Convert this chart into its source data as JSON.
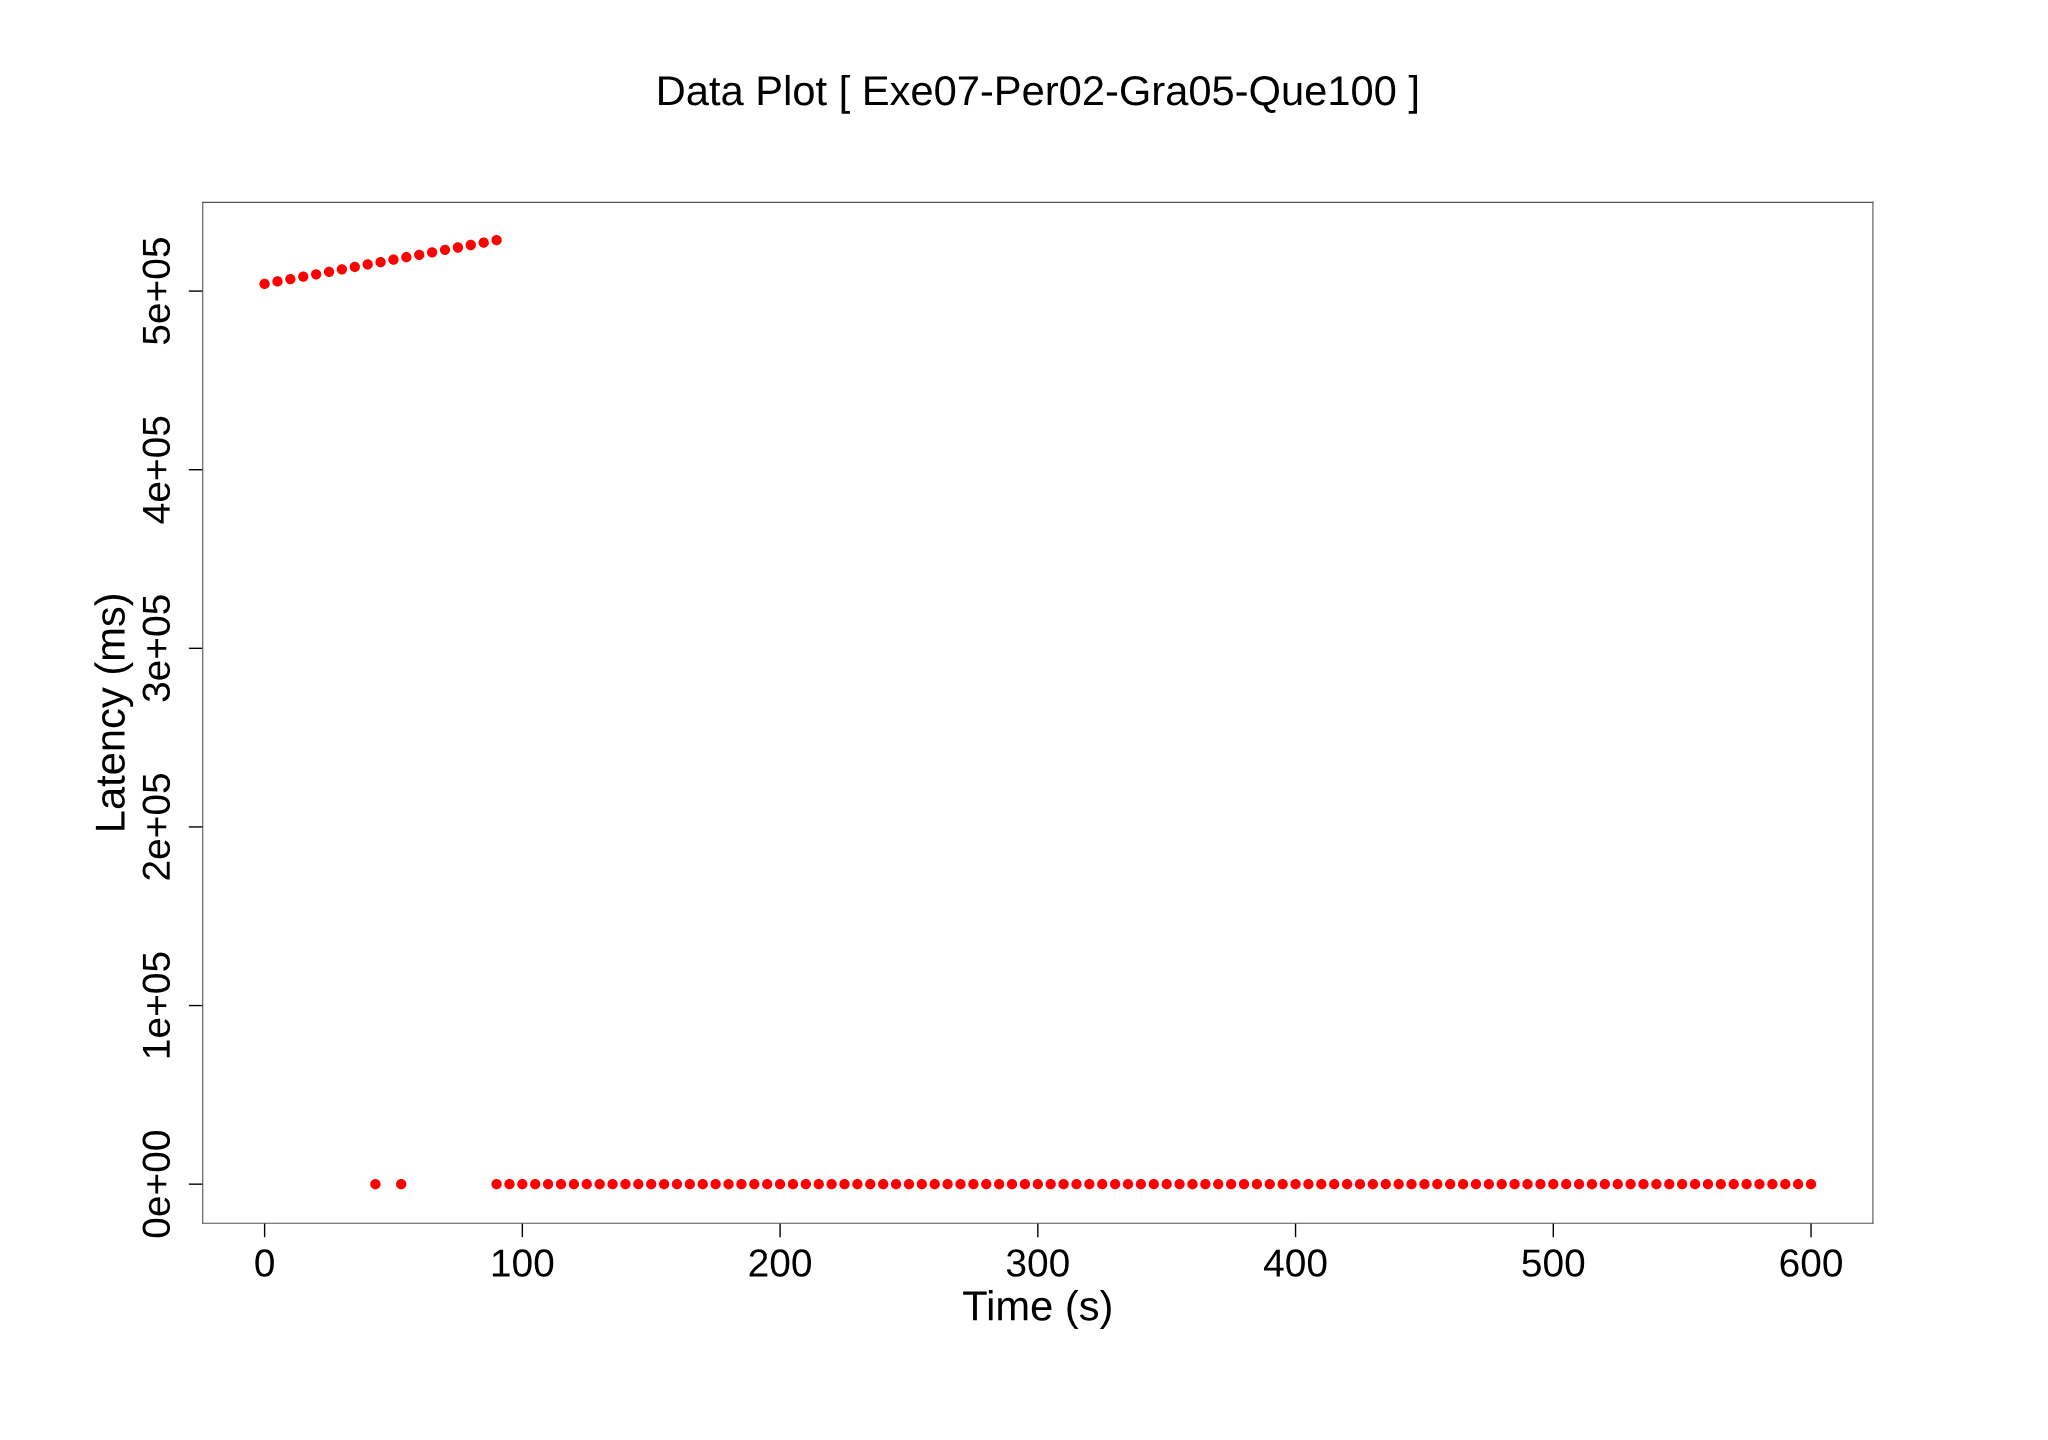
{
  "chart_data": {
    "type": "scatter",
    "title": "Data Plot [ Exe07-Per02-Gra05-Que100 ]",
    "xlabel": "Time (s)",
    "ylabel": "Latency (ms)",
    "marker": "circle",
    "grid": false,
    "legend": false,
    "xlim": [
      -24,
      624
    ],
    "xticks": [
      0,
      100,
      200,
      300,
      400,
      500,
      600
    ],
    "ylim": [
      -21900,
      549700
    ],
    "yticks": [
      {
        "value": 0,
        "label": "0e+00"
      },
      {
        "value": 100000,
        "label": "1e+05"
      },
      {
        "value": 200000,
        "label": "2e+05"
      },
      {
        "value": 300000,
        "label": "3e+05"
      },
      {
        "value": 400000,
        "label": "4e+05"
      },
      {
        "value": 500000,
        "label": "5e+05"
      }
    ],
    "series": [
      {
        "color": "#ff0000",
        "x": [
          0,
          5,
          10,
          15,
          20,
          25,
          30,
          35,
          40,
          45,
          50,
          55,
          60,
          65,
          70,
          75,
          80,
          85,
          90
        ],
        "values": [
          504000,
          505400,
          506700,
          508100,
          509400,
          510800,
          512200,
          513500,
          514900,
          516200,
          517600,
          519000,
          520300,
          521700,
          523100,
          524400,
          525800,
          527100,
          528500
        ]
      },
      {
        "color": "#ff0000",
        "x": [
          43,
          53,
          90,
          95,
          100,
          105,
          110,
          115,
          120,
          125,
          130,
          135,
          140,
          145,
          150,
          155,
          160,
          165,
          170,
          175,
          180,
          185,
          190,
          195,
          200,
          205,
          210,
          215,
          220,
          225,
          230,
          235,
          240,
          245,
          250,
          255,
          260,
          265,
          270,
          275,
          280,
          285,
          290,
          295,
          300,
          305,
          310,
          315,
          320,
          325,
          330,
          335,
          340,
          345,
          350,
          355,
          360,
          365,
          370,
          375,
          380,
          385,
          390,
          395,
          400,
          405,
          410,
          415,
          420,
          425,
          430,
          435,
          440,
          445,
          450,
          455,
          460,
          465,
          470,
          475,
          480,
          485,
          490,
          495,
          500,
          505,
          510,
          515,
          520,
          525,
          530,
          535,
          540,
          545,
          550,
          555,
          560,
          565,
          570,
          575,
          580,
          585,
          590,
          595,
          600
        ],
        "values": [
          0,
          0,
          0,
          0,
          0,
          0,
          0,
          0,
          0,
          0,
          0,
          0,
          0,
          0,
          0,
          0,
          0,
          0,
          0,
          0,
          0,
          0,
          0,
          0,
          0,
          0,
          0,
          0,
          0,
          0,
          0,
          0,
          0,
          0,
          0,
          0,
          0,
          0,
          0,
          0,
          0,
          0,
          0,
          0,
          0,
          0,
          0,
          0,
          0,
          0,
          0,
          0,
          0,
          0,
          0,
          0,
          0,
          0,
          0,
          0,
          0,
          0,
          0,
          0,
          0,
          0,
          0,
          0,
          0,
          0,
          0,
          0,
          0,
          0,
          0,
          0,
          0,
          0,
          0,
          0,
          0,
          0,
          0,
          0,
          0,
          0,
          0,
          0,
          0,
          0,
          0,
          0,
          0,
          0,
          0,
          0,
          0,
          0,
          0,
          0,
          0,
          0,
          0,
          0,
          0
        ]
      }
    ]
  }
}
